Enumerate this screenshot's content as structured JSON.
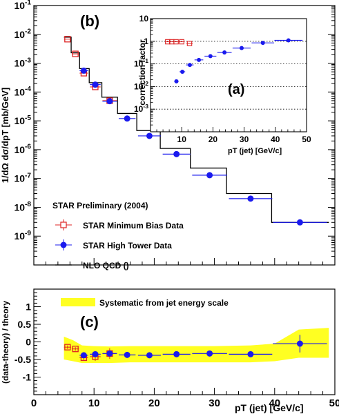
{
  "figure": {
    "panel_b_label": "(b)",
    "panel_a_label": "(a)",
    "panel_c_label": "(c)",
    "legend_title": "STAR Preliminary (2004)",
    "legend_minbias": "STAR Minimum Bias Data",
    "legend_hightower": "STAR High Tower Data",
    "legend_nlo": "NLO QCD ()",
    "band_label": "Systematic from jet energy scale",
    "y_label_b": "1/dΩ  dσ/dpT  [mb/GeV]",
    "y_label_a": "correction  factor",
    "x_label_a": "pT (jet)  [GeV/c]",
    "y_label_c": "(data-theory) /  theory",
    "x_label_c": "pT (jet)  [GeV/c]"
  },
  "colors": {
    "minbias": "#dd2222",
    "hightower": "#1a1aee",
    "nlo": "#000000",
    "band": "#ffff22"
  },
  "chart_data": [
    {
      "panel": "b",
      "type": "scatter",
      "ylabel": "1/dΩ  dσ/dpT  [mb/GeV]",
      "xlim": [
        0,
        50
      ],
      "ylim": [
        1e-10,
        0.1
      ],
      "yscale": "log",
      "yticks": [
        "10^-9",
        "10^-8",
        "10^-7",
        "10^-6",
        "10^-5",
        "10^-4",
        "10^-3",
        "10^-2",
        "10^-1"
      ],
      "series": [
        {
          "name": "STAR Minimum Bias Data",
          "x": [
            5.6,
            6.9,
            8.3,
            10.2,
            12.6
          ],
          "y": [
            0.0068,
            0.0021,
            0.00045,
            0.00015,
            5e-05
          ],
          "xerr": [
            0.6,
            0.6,
            0.7,
            0.9,
            1.2
          ]
        },
        {
          "name": "STAR High Tower Data",
          "x": [
            8.3,
            10.2,
            12.6,
            15.5,
            19.2,
            23.7,
            29.2,
            36.0,
            44.2
          ],
          "y": [
            0.00055,
            0.00018,
            4.8e-05,
            1.2e-05,
            3e-06,
            7e-07,
            1.3e-07,
            2e-08,
            3e-09
          ],
          "xerr": [
            0.7,
            0.9,
            1.2,
            1.4,
            1.9,
            2.3,
            2.9,
            3.6,
            4.5
          ]
        },
        {
          "name": "NLO QCD ()",
          "type": "step",
          "edges": [
            5.0,
            6.2,
            7.6,
            9.2,
            11.3,
            13.9,
            17.1,
            21.0,
            26.0,
            32.0,
            39.5,
            49.0
          ],
          "y": [
            0.008,
            0.0023,
            0.00065,
            0.00021,
            6.6e-05,
            1.8e-05,
            4.6e-06,
            1.1e-06,
            2.3e-07,
            3e-08,
            3e-09
          ]
        }
      ]
    },
    {
      "panel": "a",
      "type": "scatter",
      "xlabel": "pT (jet)  [GeV/c]",
      "ylabel": "correction  factor",
      "xlim": [
        0,
        50
      ],
      "ylim": [
        0.0001,
        10
      ],
      "yscale": "log",
      "xticks": [
        10,
        20,
        30,
        40,
        50
      ],
      "yticks": [
        "10^-3",
        "10^-2",
        "10^-1",
        "1",
        "10"
      ],
      "reference_lines": [
        1,
        0.1,
        0.01,
        0.001
      ],
      "series": [
        {
          "name": "STAR Minimum Bias Data",
          "x": [
            5.5,
            6.8,
            8.2,
            10.0,
            12.5
          ],
          "y": [
            0.95,
            0.95,
            0.95,
            0.95,
            0.8
          ],
          "xerr": [
            0.6,
            0.6,
            0.7,
            0.9,
            1.0
          ]
        },
        {
          "name": "STAR High Tower Data",
          "x": [
            8.3,
            10.2,
            12.6,
            15.5,
            19.2,
            23.7,
            29.2,
            36.0,
            44.2
          ],
          "y": [
            0.017,
            0.045,
            0.09,
            0.15,
            0.22,
            0.32,
            0.5,
            0.85,
            1.1
          ],
          "xerr": [
            0.7,
            0.9,
            1.2,
            1.4,
            1.9,
            2.3,
            2.9,
            3.6,
            4.5
          ]
        }
      ]
    },
    {
      "panel": "c",
      "type": "scatter",
      "xlabel": "pT (jet)  [GeV/c]",
      "ylabel": "(data-theory) /  theory",
      "xlim": [
        0,
        50
      ],
      "ylim": [
        -1.5,
        1.5
      ],
      "xticks": [
        0,
        10,
        20,
        30,
        40,
        50
      ],
      "yticks": [
        -1,
        -0.5,
        0,
        0.5,
        1
      ],
      "band": {
        "name": "Systematic from jet energy scale",
        "x": [
          5.0,
          6.5,
          8.0,
          10.0,
          12.5,
          16.0,
          20.0,
          25.0,
          30.0,
          36.0,
          40.0,
          44.0,
          49.0
        ],
        "upper": [
          0.15,
          0.05,
          -0.1,
          -0.12,
          -0.13,
          -0.12,
          -0.12,
          -0.12,
          -0.12,
          -0.1,
          -0.05,
          0.35,
          0.4
        ],
        "lower": [
          -0.5,
          -0.55,
          -0.6,
          -0.6,
          -0.6,
          -0.58,
          -0.58,
          -0.58,
          -0.58,
          -0.58,
          -0.55,
          -0.45,
          -0.45
        ]
      },
      "series": [
        {
          "name": "STAR Minimum Bias Data",
          "x": [
            5.6,
            6.9,
            8.3,
            10.2,
            12.6
          ],
          "y": [
            -0.15,
            -0.2,
            -0.45,
            -0.42,
            -0.33
          ],
          "xerr": [
            0.6,
            0.6,
            0.7,
            0.9,
            1.2
          ],
          "yerr": [
            0.05,
            0.05,
            0.08,
            0.12,
            0.15
          ]
        },
        {
          "name": "STAR High Tower Data",
          "x": [
            8.3,
            10.2,
            12.6,
            15.5,
            19.2,
            23.7,
            29.2,
            36.0,
            44.2
          ],
          "y": [
            -0.38,
            -0.35,
            -0.33,
            -0.37,
            -0.38,
            -0.35,
            -0.33,
            -0.35,
            -0.05
          ],
          "xerr": [
            0.7,
            0.9,
            1.2,
            1.4,
            1.9,
            2.3,
            2.9,
            3.6,
            4.5
          ],
          "yerr": [
            0.06,
            0.08,
            0.08,
            0.04,
            0.03,
            0.03,
            0.03,
            0.04,
            0.25
          ]
        }
      ]
    }
  ]
}
